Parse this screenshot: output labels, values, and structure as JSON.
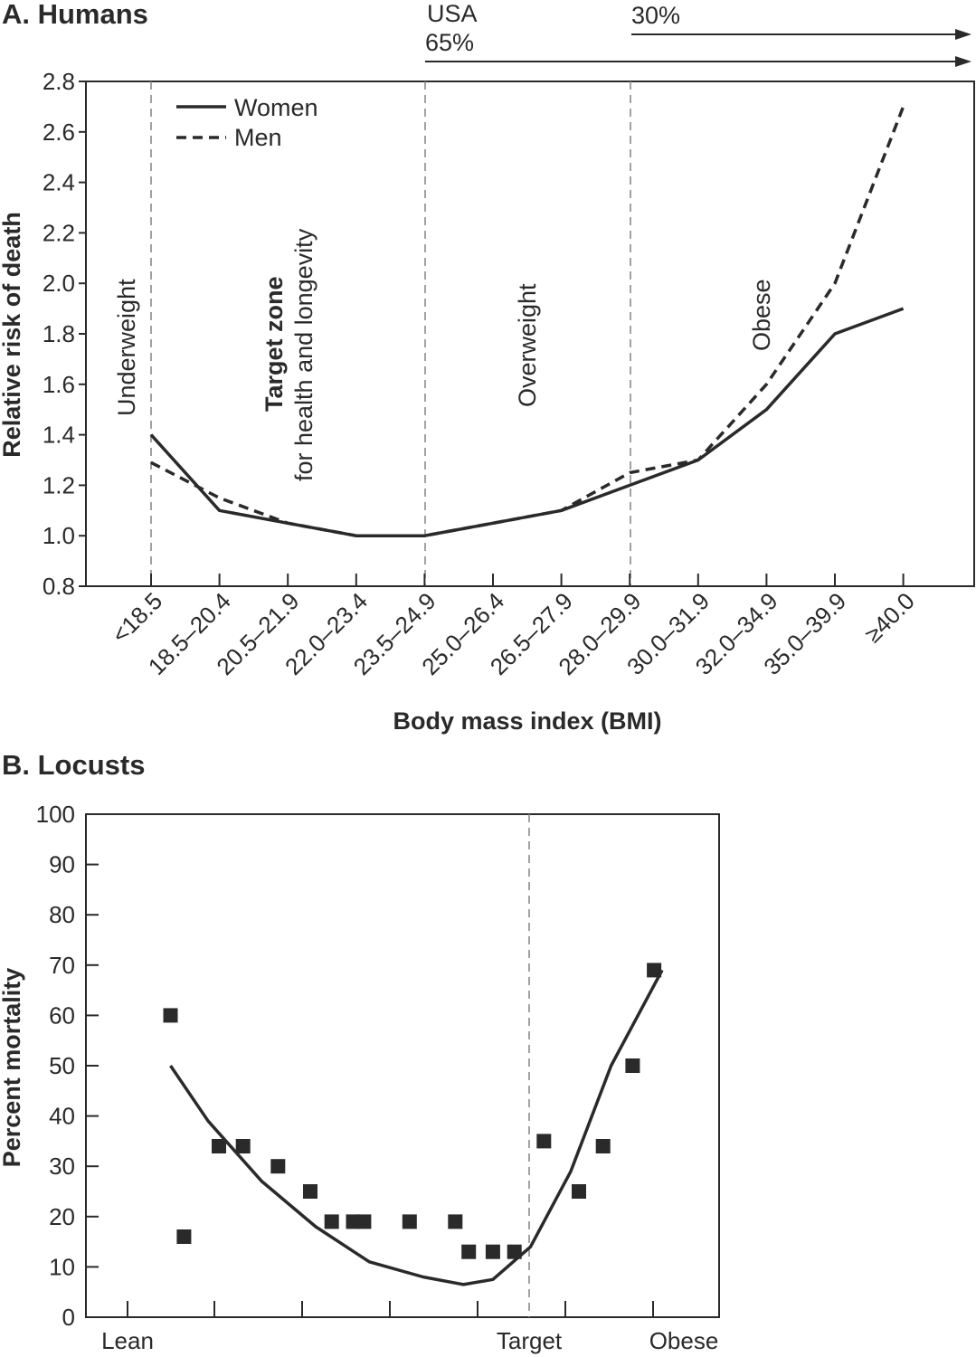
{
  "chart_data": [
    {
      "type": "line",
      "title": "A. Humans",
      "xlabel": "Body mass index (BMI)",
      "ylabel": "Relative risk of death",
      "ylim": [
        0.8,
        2.8
      ],
      "yticks": [
        "0.8",
        "1.0",
        "1.2",
        "1.4",
        "1.6",
        "1.8",
        "2.0",
        "2.2",
        "2.4",
        "2.6",
        "2.8"
      ],
      "categories": [
        "<18.5",
        "18.5–20.4",
        "20.5–21.9",
        "22.0–23.4",
        "23.5–24.9",
        "25.0–26.4",
        "26.5–27.9",
        "28.0–29.9",
        "30.0–31.9",
        "32.0–34.9",
        "35.0–39.9",
        "≥40.0"
      ],
      "series": [
        {
          "name": "Women",
          "style": "solid",
          "values": [
            1.4,
            1.1,
            1.05,
            1.0,
            1.0,
            1.05,
            1.1,
            1.2,
            1.3,
            1.5,
            1.8,
            1.9
          ]
        },
        {
          "name": "Men",
          "style": "dashed",
          "values": [
            1.29,
            1.15,
            1.05,
            1.0,
            1.0,
            1.05,
            1.1,
            1.25,
            1.3,
            1.6,
            2.0,
            2.7
          ]
        }
      ],
      "legend_position": "top-left",
      "zones": [
        {
          "label": "Underweight"
        },
        {
          "label_bold": "Target zone",
          "label": "for health and longevity"
        },
        {
          "label": "Overweight"
        },
        {
          "label": "Obese"
        }
      ],
      "population_annotations": [
        {
          "country": "USA",
          "percent": "65%"
        },
        {
          "percent": "30%"
        }
      ],
      "grid": false
    },
    {
      "type": "scatter",
      "title": "B. Locusts",
      "ylabel": "Percent mortality",
      "ylim": [
        0,
        100
      ],
      "yticks": [
        "0",
        "10",
        "20",
        "30",
        "40",
        "50",
        "60",
        "70",
        "80",
        "90",
        "100"
      ],
      "xlabels": [
        "Lean",
        "Target",
        "Obese"
      ],
      "points": [
        {
          "x": 1.6,
          "y": 60
        },
        {
          "x": 2.1,
          "y": 16
        },
        {
          "x": 3.4,
          "y": 34
        },
        {
          "x": 4.3,
          "y": 34
        },
        {
          "x": 5.6,
          "y": 30
        },
        {
          "x": 6.8,
          "y": 25
        },
        {
          "x": 7.6,
          "y": 19
        },
        {
          "x": 8.4,
          "y": 19
        },
        {
          "x": 8.8,
          "y": 19
        },
        {
          "x": 10.5,
          "y": 19
        },
        {
          "x": 12.2,
          "y": 19
        },
        {
          "x": 12.7,
          "y": 13
        },
        {
          "x": 13.6,
          "y": 13
        },
        {
          "x": 14.4,
          "y": 13
        },
        {
          "x": 15.5,
          "y": 35
        },
        {
          "x": 16.8,
          "y": 25
        },
        {
          "x": 17.7,
          "y": 34
        },
        {
          "x": 18.8,
          "y": 50
        },
        {
          "x": 19.6,
          "y": 69
        }
      ],
      "curve": [
        {
          "x": 1.6,
          "y": 50
        },
        {
          "x": 3,
          "y": 39
        },
        {
          "x": 5,
          "y": 27
        },
        {
          "x": 7,
          "y": 18
        },
        {
          "x": 9,
          "y": 11
        },
        {
          "x": 11,
          "y": 8
        },
        {
          "x": 12.5,
          "y": 6.5
        },
        {
          "x": 13.6,
          "y": 7.5
        },
        {
          "x": 15,
          "y": 14
        },
        {
          "x": 16.5,
          "y": 29
        },
        {
          "x": 18,
          "y": 50
        },
        {
          "x": 19.9,
          "y": 69
        }
      ],
      "grid": false
    }
  ]
}
